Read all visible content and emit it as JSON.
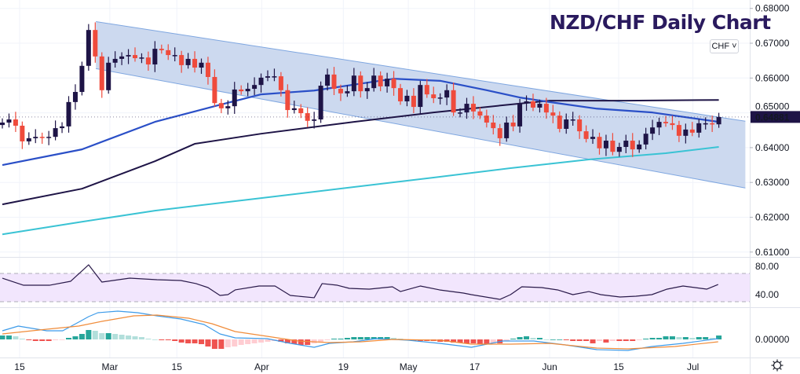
{
  "title": "NZD/CHF Daily Chart",
  "currency_button": "CHF ˅",
  "last_price_label": "0.64881",
  "settings_icon": "gear-icon",
  "colors": {
    "up": "#1e1446",
    "down": "#ef4b3c",
    "sma50": "#2a4fc7",
    "sma100": "#1e1446",
    "sma200": "#3ac3d4",
    "channel_fill": "#c9d7ee",
    "channel_line": "#7ea6e0",
    "rsi_line": "#2a1a4a",
    "rsi_band": "#f2e6fd",
    "macd": "#3d9be9",
    "signal": "#f08c3a",
    "hist_up_strong": "#26a69a",
    "hist_up_weak": "#b2dfdb",
    "hist_dn_strong": "#ef5350",
    "hist_dn_weak": "#ffcdd2",
    "title": "#2a1a5e"
  },
  "chart_data": {
    "type": "candlestick",
    "title": "NZD/CHF Daily Chart",
    "price_ticks": [
      "0.68000",
      "0.67000",
      "0.66000",
      "0.65000",
      "0.64000",
      "0.63000",
      "0.62000",
      "0.61000"
    ],
    "price_tick_values": [
      0.68,
      0.67,
      0.66,
      0.65,
      0.64,
      0.63,
      0.62,
      0.61
    ],
    "x_ticks": [
      {
        "label": "15",
        "idx": 2.6
      },
      {
        "label": "Mar",
        "idx": 16.2
      },
      {
        "label": "15",
        "idx": 26.3
      },
      {
        "label": "Apr",
        "idx": 39.1
      },
      {
        "label": "19",
        "idx": 51.4
      },
      {
        "label": "May",
        "idx": 61.2
      },
      {
        "label": "17",
        "idx": 71.2
      },
      {
        "label": "Jun",
        "idx": 82.5
      },
      {
        "label": "15",
        "idx": 92.9
      },
      {
        "label": "Jul",
        "idx": 104.1
      }
    ],
    "first_open": 0.6465,
    "closes": [
      0.6472,
      0.6481,
      0.6463,
      0.6418,
      0.6427,
      0.6431,
      0.6429,
      0.6431,
      0.6456,
      0.6461,
      0.6531,
      0.656,
      0.6635,
      0.6738,
      0.6662,
      0.6565,
      0.6644,
      0.6655,
      0.6662,
      0.6666,
      0.6657,
      0.6659,
      0.6639,
      0.6684,
      0.668,
      0.6666,
      0.6666,
      0.6637,
      0.6655,
      0.663,
      0.6644,
      0.6603,
      0.6528,
      0.6513,
      0.6519,
      0.6567,
      0.6562,
      0.6569,
      0.658,
      0.6601,
      0.6605,
      0.6605,
      0.6565,
      0.6508,
      0.6513,
      0.6499,
      0.6477,
      0.6481,
      0.6578,
      0.661,
      0.6569,
      0.6556,
      0.6562,
      0.6607,
      0.6562,
      0.6571,
      0.6607,
      0.6576,
      0.6598,
      0.6571,
      0.6533,
      0.6549,
      0.6517,
      0.658,
      0.6553,
      0.6542,
      0.6544,
      0.6565,
      0.6501,
      0.6501,
      0.6526,
      0.6504,
      0.6492,
      0.6472,
      0.6456,
      0.6427,
      0.6472,
      0.6461,
      0.6528,
      0.6533,
      0.6515,
      0.6526,
      0.6501,
      0.6492,
      0.6454,
      0.6481,
      0.6481,
      0.6447,
      0.6425,
      0.6431,
      0.6398,
      0.642,
      0.6388,
      0.6402,
      0.642,
      0.6395,
      0.6409,
      0.644,
      0.6458,
      0.6474,
      0.647,
      0.6465,
      0.6434,
      0.6452,
      0.6443,
      0.647,
      0.647,
      0.6467,
      0.6488
    ],
    "last_price": 0.64881,
    "sma50": [
      [
        0,
        0.635
      ],
      [
        12,
        0.6395
      ],
      [
        23,
        0.6474
      ],
      [
        33,
        0.6524
      ],
      [
        39,
        0.6553
      ],
      [
        47,
        0.6564
      ],
      [
        59,
        0.6598
      ],
      [
        66,
        0.6592
      ],
      [
        73,
        0.6565
      ],
      [
        78,
        0.6544
      ],
      [
        82.5,
        0.6531
      ],
      [
        89.6,
        0.6512
      ],
      [
        98,
        0.6501
      ],
      [
        108,
        0.6474
      ]
    ],
    "sma100": [
      [
        0,
        0.6237
      ],
      [
        12,
        0.6282
      ],
      [
        23,
        0.6361
      ],
      [
        29,
        0.6411
      ],
      [
        39,
        0.644
      ],
      [
        53,
        0.6474
      ],
      [
        65,
        0.6501
      ],
      [
        76.6,
        0.6524
      ],
      [
        82.5,
        0.6535
      ],
      [
        94,
        0.6535
      ],
      [
        108,
        0.6537
      ]
    ],
    "sma200": [
      [
        0,
        0.6151
      ],
      [
        12,
        0.6187
      ],
      [
        23,
        0.6219
      ],
      [
        39,
        0.6255
      ],
      [
        53,
        0.6287
      ],
      [
        65,
        0.6314
      ],
      [
        76.6,
        0.6341
      ],
      [
        88.4,
        0.6366
      ],
      [
        100,
        0.6384
      ],
      [
        108,
        0.6402
      ]
    ],
    "channel": {
      "upper": [
        [
          14.1,
          0.6762
        ],
        [
          112,
          0.6476
        ]
      ],
      "lower": [
        [
          14.1,
          0.6627
        ],
        [
          112,
          0.6284
        ]
      ]
    },
    "rsi": {
      "ticks": [
        "80.00",
        "40.00"
      ],
      "tick_values": [
        80,
        40
      ],
      "band": [
        30,
        70
      ],
      "points": [
        [
          0,
          63.3
        ],
        [
          3.2,
          53.3
        ],
        [
          7.1,
          53.3
        ],
        [
          10.3,
          58.9
        ],
        [
          13,
          82.2
        ],
        [
          15,
          57.8
        ],
        [
          19.2,
          63.3
        ],
        [
          23.3,
          61.1
        ],
        [
          26.9,
          60
        ],
        [
          29.2,
          55.6
        ],
        [
          31,
          50
        ],
        [
          32.8,
          38.9
        ],
        [
          34,
          40
        ],
        [
          35.1,
          46.7
        ],
        [
          38.7,
          52.2
        ],
        [
          41.1,
          52.2
        ],
        [
          43.4,
          38.9
        ],
        [
          47,
          35.6
        ],
        [
          48.2,
          55.6
        ],
        [
          50.5,
          53.3
        ],
        [
          52.3,
          48.9
        ],
        [
          55.3,
          47.8
        ],
        [
          58.8,
          51.1
        ],
        [
          60,
          44.4
        ],
        [
          63,
          52.2
        ],
        [
          65.9,
          46.7
        ],
        [
          69.5,
          42.2
        ],
        [
          70.7,
          40
        ],
        [
          75,
          33.3
        ],
        [
          76.6,
          40
        ],
        [
          78.3,
          51.1
        ],
        [
          81.3,
          50
        ],
        [
          83.7,
          46.7
        ],
        [
          86,
          40
        ],
        [
          88.4,
          44.4
        ],
        [
          90.2,
          40
        ],
        [
          93.1,
          36.7
        ],
        [
          95.5,
          37.8
        ],
        [
          97.9,
          40
        ],
        [
          100.2,
          47.8
        ],
        [
          102.6,
          52.2
        ],
        [
          106.2,
          47.8
        ],
        [
          107.9,
          54.4
        ]
      ]
    },
    "macd": {
      "ticks": [
        "0.00000"
      ],
      "tick_values": [
        0
      ],
      "macd_line": [
        [
          0,
          0.0011
        ],
        [
          2.4,
          0.0017
        ],
        [
          6.7,
          0.0011
        ],
        [
          9.1,
          0.0011
        ],
        [
          11.5,
          0.0022
        ],
        [
          13,
          0.0029
        ],
        [
          14.4,
          0.0034
        ],
        [
          17.4,
          0.0036
        ],
        [
          20.4,
          0.0034
        ],
        [
          23.3,
          0.003
        ],
        [
          26.9,
          0.0026
        ],
        [
          30.4,
          0.0019
        ],
        [
          32.8,
          0.0007
        ],
        [
          35.1,
          0.0002
        ],
        [
          39.9,
          0.0001
        ],
        [
          43.4,
          -0.0005
        ],
        [
          47,
          -0.001
        ],
        [
          49.3,
          -0.0005
        ],
        [
          52.9,
          -0.0003
        ],
        [
          56.4,
          0.0001
        ],
        [
          61.2,
          -0.0001
        ],
        [
          65.9,
          -0.0005
        ],
        [
          70.7,
          -0.001
        ],
        [
          75.4,
          -0.0002
        ],
        [
          80.1,
          -0.0002
        ],
        [
          84.9,
          -0.0007
        ],
        [
          89.6,
          -0.0013
        ],
        [
          94.3,
          -0.0014
        ],
        [
          97.9,
          -0.0009
        ],
        [
          102.6,
          -0.0005
        ],
        [
          107.9,
          0.0001
        ]
      ],
      "signal_line": [
        [
          0,
          0.0007
        ],
        [
          6.7,
          0.0013
        ],
        [
          11.5,
          0.0017
        ],
        [
          15,
          0.0023
        ],
        [
          19.8,
          0.003
        ],
        [
          23.3,
          0.0031
        ],
        [
          28.1,
          0.0027
        ],
        [
          31.6,
          0.002
        ],
        [
          35.1,
          0.001
        ],
        [
          39.9,
          0.0004
        ],
        [
          44.6,
          -0.0002
        ],
        [
          49.3,
          -0.0004
        ],
        [
          54.1,
          -0.0003
        ],
        [
          58.8,
          0
        ],
        [
          65.9,
          -0.0001
        ],
        [
          70.7,
          -0.0006
        ],
        [
          76.6,
          -0.0006
        ],
        [
          82.5,
          -0.0005
        ],
        [
          89.6,
          -0.0011
        ],
        [
          94.3,
          -0.0012
        ],
        [
          101.4,
          -0.0009
        ],
        [
          107.9,
          -0.0003
        ]
      ],
      "histogram_units_1e-4": [
        5,
        5,
        4,
        1,
        -1,
        -2,
        -2,
        -2,
        -1,
        -0.5,
        2,
        4,
        7,
        12,
        11,
        8,
        8,
        7,
        6,
        5,
        4,
        3,
        1,
        0,
        -1,
        -1,
        -2,
        -4,
        -5,
        -5,
        -6,
        -9,
        -12,
        -12,
        -10,
        -9,
        -7,
        -6,
        -5,
        -4,
        -3,
        -2,
        -3,
        -5,
        -6,
        -7,
        -7,
        -5,
        -4,
        -1,
        1,
        1,
        2,
        3,
        3,
        3,
        3,
        3,
        3,
        2,
        1,
        -1,
        -2,
        -2,
        -2,
        -2,
        -3,
        -3,
        -4,
        -4,
        -5,
        -5,
        -6,
        -6,
        -5,
        -5,
        -2,
        1,
        3,
        4,
        2,
        2,
        0,
        0,
        0,
        -1,
        -2,
        -2,
        -2,
        -5,
        -2,
        -4,
        -2,
        -2,
        -2,
        -2,
        -1,
        1,
        2,
        2,
        4,
        4,
        3,
        3,
        2,
        3,
        3,
        2,
        5
      ]
    }
  }
}
